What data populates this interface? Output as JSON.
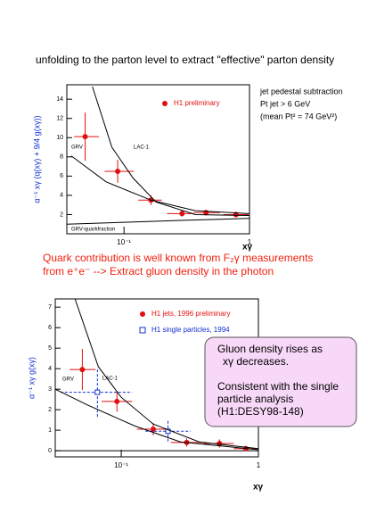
{
  "heading": "unfolding to the parton level to extract \"effective\" parton density",
  "notes": [
    "jet pedestal subtraction",
    "Pt jet > 6 GeV",
    "(mean Pt² = 74 GeV²)"
  ],
  "middle_text": [
    "Quark contribution is well known from F₂γ measurements",
    "from e⁺e⁻  --> Extract gluon density in the photon"
  ],
  "box_text": [
    "Gluon density rises as",
    "xγ decreases.",
    "Consistent with the single",
    "particle analysis",
    "(H1:DESY98-148)"
  ],
  "chart_data": [
    {
      "type": "scatter",
      "log_x": true,
      "xlabel": "xγ",
      "ylabel": "α⁻¹ xγ (q(xγ) + 9/4 g(xγ))",
      "xlim": [
        0.035,
        1
      ],
      "ylim": [
        0,
        15.5
      ],
      "xticks": [
        {
          "value": 0.1,
          "label": "10⁻¹"
        },
        1
      ],
      "yticks": [
        2,
        4,
        6,
        8,
        10,
        12,
        14
      ],
      "legend": "top-right",
      "series": [
        {
          "name": "H1 preliminary",
          "color": "#e01010",
          "marker": "circle",
          "x": [
            0.049,
            0.089,
            0.164,
            0.29,
            0.45,
            0.78
          ],
          "values": [
            10.1,
            6.5,
            3.5,
            2.1,
            2.2,
            2.0
          ],
          "yerr": [
            2.5,
            1.2,
            0.5,
            0.3,
            0.3,
            0.3
          ],
          "xlow": [
            0.04,
            0.07,
            0.13,
            0.22,
            0.36,
            0.62
          ],
          "xhigh": [
            0.063,
            0.12,
            0.2,
            0.36,
            0.58,
            0.98
          ]
        },
        {
          "name": "LAC-1",
          "color": "#000000",
          "marker": "line",
          "x": [
            0.056,
            0.08,
            0.118,
            0.18,
            0.37,
            1
          ],
          "values": [
            15.3,
            9.0,
            5.8,
            3.3,
            2.0,
            1.9
          ]
        },
        {
          "name": "GRV",
          "color": "#000000",
          "marker": "line",
          "x": [
            0.038,
            0.072,
            0.164,
            0.37,
            1
          ],
          "values": [
            8.1,
            5.4,
            3.5,
            2.4,
            2.1
          ]
        },
        {
          "name": "GRV-quarkfraction",
          "color": "#000000",
          "marker": "line",
          "x": [
            0.035,
            0.1,
            0.3,
            1
          ],
          "values": [
            1.0,
            1.2,
            1.4,
            1.6
          ]
        }
      ]
    },
    {
      "type": "scatter",
      "log_x": true,
      "xlabel": "xγ",
      "ylabel": "α⁻¹ xγ g(xγ)",
      "xlim": [
        0.033,
        1
      ],
      "ylim": [
        -0.3,
        7.4
      ],
      "xticks": [
        {
          "value": 0.1,
          "label": "10⁻¹"
        },
        1
      ],
      "yticks": [
        0,
        1,
        2,
        3,
        4,
        5,
        6,
        7
      ],
      "legend": "top-right",
      "series": [
        {
          "name": "H1 jets, 1996 preliminary",
          "color": "#e01010",
          "marker": "circle",
          "x": [
            0.052,
            0.093,
            0.171,
            0.3,
            0.52,
            0.81
          ],
          "values": [
            3.96,
            2.4,
            1.05,
            0.4,
            0.35,
            0.1
          ],
          "yerr": [
            1.0,
            0.5,
            0.3,
            0.2,
            0.2,
            0.1
          ],
          "xlow": [
            0.042,
            0.072,
            0.13,
            0.23,
            0.4,
            0.66
          ],
          "xhigh": [
            0.065,
            0.12,
            0.22,
            0.4,
            0.66,
            0.98
          ]
        },
        {
          "name": "H1 single particles, 1994",
          "color": "#1030d0",
          "marker": "square",
          "x": [
            0.067,
            0.219
          ],
          "values": [
            2.85,
            0.95
          ],
          "yerr": [
            1.2,
            0.5
          ],
          "xlow": [
            0.036,
            0.15
          ],
          "xhigh": [
            0.12,
            0.32
          ]
        },
        {
          "name": "LAC-1",
          "color": "#000000",
          "marker": "line",
          "x": [
            0.046,
            0.068,
            0.1,
            0.171,
            0.37,
            1
          ],
          "values": [
            7.4,
            4.1,
            2.6,
            1.3,
            0.43,
            0.1
          ]
        },
        {
          "name": "GRV",
          "color": "#000000",
          "marker": "line",
          "x": [
            0.033,
            0.058,
            0.126,
            0.27,
            1
          ],
          "values": [
            3.0,
            2.2,
            1.2,
            0.43,
            0.05
          ]
        }
      ]
    }
  ]
}
